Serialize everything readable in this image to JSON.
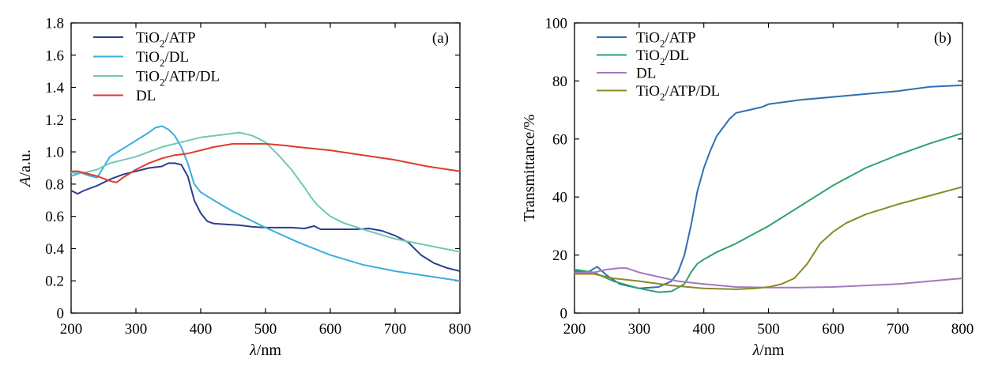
{
  "chart_data": [
    {
      "type": "line",
      "panel_label": "(a)",
      "xlabel_italic": "λ",
      "xlabel_rest": "/nm",
      "ylabel_italic": "A",
      "ylabel_rest": "/a.u.",
      "xlim": [
        200,
        800
      ],
      "ylim": [
        0,
        1.8
      ],
      "xticks": [
        "200",
        "300",
        "400",
        "500",
        "600",
        "700",
        "800"
      ],
      "yticks": [
        "0",
        "0.2",
        "0.4",
        "0.6",
        "0.8",
        "1.0",
        "1.2",
        "1.4",
        "1.6",
        "1.8"
      ],
      "legend_position": "top-left",
      "series": [
        {
          "name_parts": [
            "TiO",
            "2",
            "/ATP"
          ],
          "color": "#2b3f8f",
          "x": [
            200,
            210,
            220,
            240,
            260,
            280,
            300,
            320,
            340,
            350,
            360,
            370,
            380,
            390,
            400,
            410,
            420,
            440,
            460,
            480,
            500,
            520,
            540,
            560,
            575,
            585,
            600,
            620,
            640,
            660,
            680,
            700,
            720,
            740,
            760,
            780,
            800
          ],
          "y": [
            0.76,
            0.74,
            0.76,
            0.79,
            0.83,
            0.86,
            0.88,
            0.9,
            0.91,
            0.93,
            0.93,
            0.92,
            0.85,
            0.7,
            0.62,
            0.57,
            0.555,
            0.55,
            0.545,
            0.535,
            0.53,
            0.53,
            0.53,
            0.525,
            0.54,
            0.52,
            0.52,
            0.52,
            0.52,
            0.525,
            0.51,
            0.48,
            0.44,
            0.36,
            0.31,
            0.28,
            0.26
          ]
        },
        {
          "name_parts": [
            "TiO",
            "2",
            "/DL"
          ],
          "color": "#3aaedc",
          "x": [
            200,
            215,
            230,
            240,
            260,
            280,
            300,
            320,
            330,
            340,
            350,
            360,
            370,
            380,
            390,
            400,
            420,
            450,
            480,
            500,
            550,
            600,
            650,
            700,
            750,
            800
          ],
          "y": [
            0.85,
            0.87,
            0.85,
            0.84,
            0.97,
            1.02,
            1.07,
            1.12,
            1.15,
            1.16,
            1.14,
            1.1,
            1.03,
            0.93,
            0.8,
            0.75,
            0.7,
            0.63,
            0.57,
            0.53,
            0.44,
            0.36,
            0.3,
            0.26,
            0.23,
            0.2
          ]
        },
        {
          "name_parts": [
            "TiO",
            "2",
            "/ATP/DL"
          ],
          "color": "#6fc9b4",
          "x": [
            200,
            220,
            240,
            260,
            280,
            300,
            320,
            340,
            360,
            380,
            400,
            420,
            440,
            460,
            480,
            500,
            520,
            540,
            560,
            570,
            580,
            600,
            620,
            650,
            700,
            750,
            800
          ],
          "y": [
            0.87,
            0.87,
            0.89,
            0.93,
            0.95,
            0.97,
            1.0,
            1.03,
            1.05,
            1.07,
            1.09,
            1.1,
            1.11,
            1.12,
            1.1,
            1.06,
            0.98,
            0.89,
            0.78,
            0.72,
            0.67,
            0.6,
            0.56,
            0.52,
            0.46,
            0.42,
            0.38
          ]
        },
        {
          "name_parts": [
            "DL"
          ],
          "color": "#e03a2b",
          "x": [
            200,
            210,
            220,
            240,
            260,
            270,
            280,
            300,
            320,
            340,
            360,
            380,
            400,
            420,
            450,
            480,
            500,
            530,
            550,
            600,
            650,
            700,
            750,
            800
          ],
          "y": [
            0.88,
            0.88,
            0.87,
            0.85,
            0.82,
            0.81,
            0.84,
            0.89,
            0.93,
            0.96,
            0.98,
            0.99,
            1.01,
            1.03,
            1.05,
            1.05,
            1.05,
            1.04,
            1.03,
            1.01,
            0.98,
            0.95,
            0.91,
            0.88
          ]
        }
      ]
    },
    {
      "type": "line",
      "panel_label": "(b)",
      "xlabel_italic": "λ",
      "xlabel_rest": "/nm",
      "ylabel_italic": "",
      "ylabel_rest": "Transmittance/%",
      "xlim": [
        200,
        800
      ],
      "ylim": [
        0,
        100
      ],
      "xticks": [
        "200",
        "300",
        "400",
        "500",
        "600",
        "700",
        "800"
      ],
      "yticks": [
        "0",
        "20",
        "40",
        "60",
        "80",
        "100"
      ],
      "legend_position": "top-left",
      "series": [
        {
          "name_parts": [
            "TiO",
            "2",
            "/ATP"
          ],
          "color": "#2f6fb5",
          "x": [
            200,
            220,
            235,
            250,
            270,
            300,
            330,
            350,
            360,
            370,
            380,
            390,
            400,
            410,
            420,
            440,
            450,
            470,
            490,
            500,
            550,
            600,
            650,
            700,
            750,
            800
          ],
          "y": [
            14.5,
            14,
            16,
            13,
            10,
            8.5,
            9,
            11,
            14,
            20,
            30,
            42,
            50,
            56,
            61,
            67,
            69,
            70,
            71,
            72,
            73.5,
            74.5,
            75.5,
            76.5,
            78,
            78.5
          ]
        },
        {
          "name_parts": [
            "TiO",
            "2",
            "/DL"
          ],
          "color": "#2ea36a",
          "x": [
            200,
            230,
            260,
            300,
            330,
            350,
            370,
            380,
            390,
            400,
            420,
            450,
            500,
            550,
            600,
            650,
            700,
            750,
            800
          ],
          "y": [
            15,
            14,
            11,
            8.5,
            7.2,
            7.5,
            10,
            14,
            17,
            18.5,
            21,
            24,
            30,
            37,
            44,
            50,
            54.5,
            58.5,
            62
          ]
        },
        {
          "name_parts": [
            "DL"
          ],
          "color": "#a678c0",
          "x": [
            200,
            230,
            250,
            270,
            280,
            300,
            330,
            360,
            400,
            450,
            500,
            550,
            600,
            650,
            700,
            750,
            800
          ],
          "y": [
            14,
            14,
            15,
            15.5,
            15.5,
            14,
            12.5,
            11,
            10,
            9,
            8.8,
            8.8,
            9,
            9.5,
            10,
            11,
            12
          ]
        },
        {
          "name_parts": [
            "TiO",
            "2",
            "/ATP/DL"
          ],
          "color": "#8a8a26",
          "x": [
            200,
            230,
            260,
            300,
            350,
            400,
            450,
            480,
            500,
            520,
            540,
            560,
            580,
            600,
            620,
            650,
            700,
            750,
            800
          ],
          "y": [
            13.5,
            13.5,
            12,
            11,
            9.5,
            8.5,
            8.2,
            8.5,
            9,
            10,
            12,
            17,
            24,
            28,
            31,
            34,
            37.5,
            40.5,
            43.5
          ]
        }
      ]
    }
  ]
}
